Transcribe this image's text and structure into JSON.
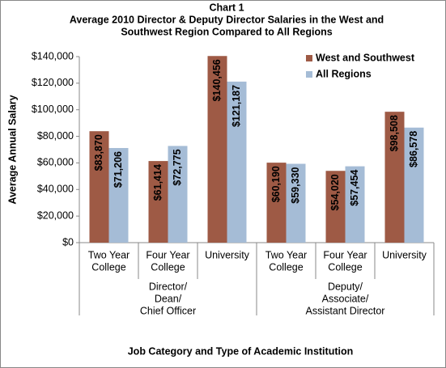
{
  "chart_data": {
    "type": "bar",
    "title": [
      "Chart 1",
      "Average 2010 Director & Deputy Director Salaries in the West and",
      "Southwest Region Compared to All Regions"
    ],
    "y_label": "Average Annual Salary",
    "x_label": "Job Category and Type of Academic Institution",
    "groups": [
      {
        "label": [
          "Director/",
          "Dean/",
          "Chief Officer"
        ],
        "categories": [
          [
            "Two Year",
            "College"
          ],
          [
            "Four Year",
            "College"
          ],
          [
            "University"
          ]
        ]
      },
      {
        "label": [
          "Deputy/",
          "Associate/",
          "Assistant Director"
        ],
        "categories": [
          [
            "Two Year",
            "College"
          ],
          [
            "Four Year",
            "College"
          ],
          [
            "University"
          ]
        ]
      }
    ],
    "series": [
      {
        "name": "West and Southwest",
        "color": "#9e5a45",
        "values": [
          83870,
          61414,
          140456,
          60190,
          54020,
          98508
        ],
        "value_labels": [
          "$83,870",
          "$61,414",
          "$140,456",
          "$60,190",
          "$54,020",
          "$98,508"
        ]
      },
      {
        "name": "All Regions",
        "color": "#a5bcd6",
        "values": [
          71206,
          72775,
          121187,
          59330,
          57454,
          86578
        ],
        "value_labels": [
          "$71,206",
          "$72,775",
          "$121,187",
          "$59,330",
          "$57,454",
          "$86,578"
        ]
      }
    ],
    "ylim": [
      0,
      140000
    ],
    "yticks": [
      {
        "value": 0,
        "label": "$0"
      },
      {
        "value": 20000,
        "label": "$20,000"
      },
      {
        "value": 40000,
        "label": "$40,000"
      },
      {
        "value": 60000,
        "label": "$60,000"
      },
      {
        "value": 80000,
        "label": "$80,000"
      },
      {
        "value": 100000,
        "label": "$100,000"
      },
      {
        "value": 120000,
        "label": "$120,000"
      },
      {
        "value": 140000,
        "label": "$140,000"
      }
    ],
    "legend": "top-right"
  }
}
